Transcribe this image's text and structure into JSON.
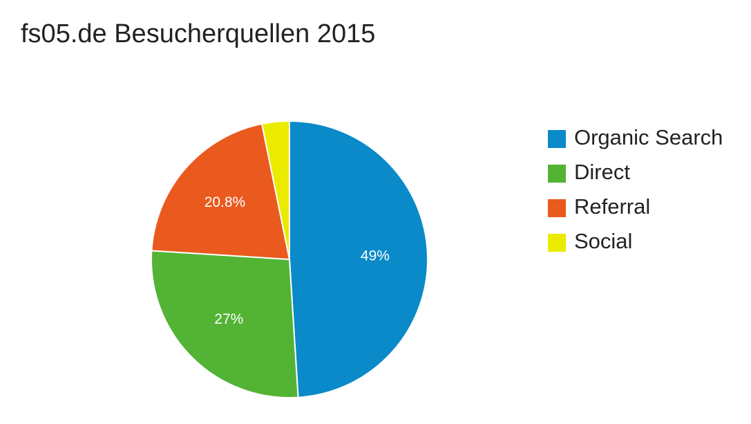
{
  "chart_data": {
    "type": "pie",
    "title": "fs05.de Besucherquellen 2015",
    "slices": [
      {
        "name": "Organic Search",
        "value": 49,
        "label": "49%",
        "color": "#0a8ac8"
      },
      {
        "name": "Direct",
        "value": 27,
        "label": "27%",
        "color": "#53b335"
      },
      {
        "name": "Referral",
        "value": 20.8,
        "label": "20.8%",
        "color": "#ea5a1e"
      },
      {
        "name": "Social",
        "value": 3.2,
        "label": "",
        "color": "#ebeb00"
      }
    ],
    "legend_position": "right"
  }
}
